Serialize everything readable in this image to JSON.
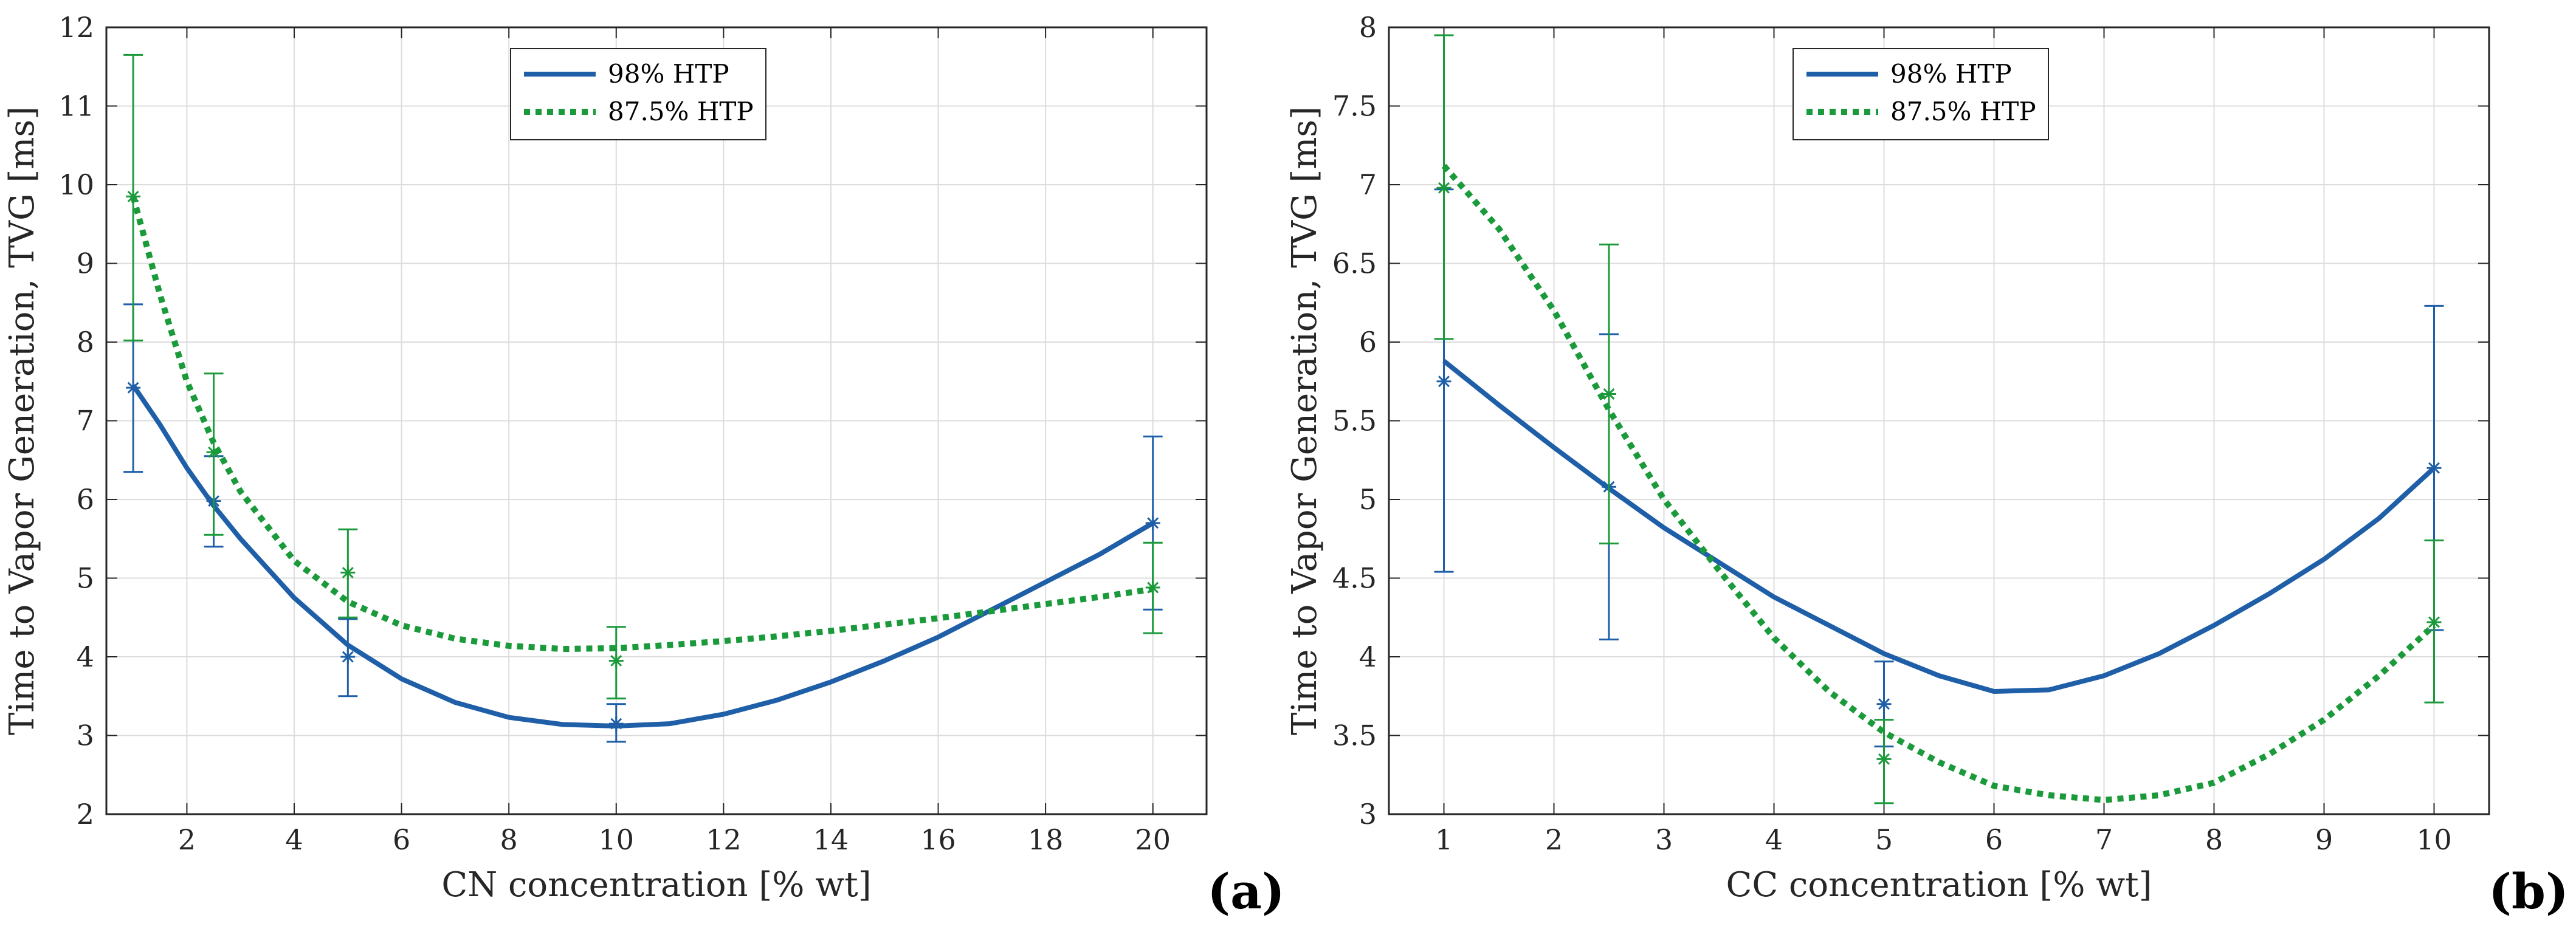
{
  "colors": {
    "htp98": "#1f5fa8",
    "htp875": "#1a9a3a",
    "axis": "#262626",
    "grid": "#dcdcdc"
  },
  "chart_data": [
    {
      "type": "line",
      "panel": "(a)",
      "xlabel": "CN concentration [% wt]",
      "ylabel": "Time to Vapor Generation, TVG [ms]",
      "xlim": [
        0.5,
        21
      ],
      "ylim": [
        2,
        12
      ],
      "xticks": [
        2,
        4,
        6,
        8,
        10,
        12,
        14,
        16,
        18,
        20
      ],
      "yticks": [
        2,
        3,
        4,
        5,
        6,
        7,
        8,
        9,
        10,
        11,
        12
      ],
      "grid": true,
      "legend": "top-center",
      "series": [
        {
          "name": "98% HTP",
          "style": "solid",
          "color": "#1f5fa8",
          "points": [
            {
              "x": 1,
              "y": 7.42,
              "lo": 6.35,
              "hi": 8.48
            },
            {
              "x": 2.5,
              "y": 5.98,
              "lo": 5.4,
              "hi": 6.55
            },
            {
              "x": 5,
              "y": 4.0,
              "lo": 3.5,
              "hi": 4.48
            },
            {
              "x": 10,
              "y": 3.15,
              "lo": 2.92,
              "hi": 3.4
            },
            {
              "x": 20,
              "y": 5.7,
              "lo": 4.6,
              "hi": 6.8
            }
          ],
          "fit_x": [
            1,
            1.5,
            2,
            2.5,
            3,
            4,
            5,
            6,
            7,
            8,
            9,
            10,
            11,
            12,
            13,
            14,
            15,
            16,
            17,
            18,
            19,
            20
          ],
          "fit_y": [
            7.45,
            6.95,
            6.4,
            5.92,
            5.5,
            4.75,
            4.15,
            3.72,
            3.42,
            3.23,
            3.14,
            3.12,
            3.15,
            3.27,
            3.45,
            3.68,
            3.95,
            4.25,
            4.6,
            4.95,
            5.3,
            5.7
          ]
        },
        {
          "name": "87.5% HTP",
          "style": "dotted",
          "color": "#1a9a3a",
          "points": [
            {
              "x": 1,
              "y": 9.85,
              "lo": 8.02,
              "hi": 11.65
            },
            {
              "x": 2.5,
              "y": 6.6,
              "lo": 5.55,
              "hi": 7.6
            },
            {
              "x": 5,
              "y": 5.07,
              "lo": 4.5,
              "hi": 5.62
            },
            {
              "x": 10,
              "y": 3.95,
              "lo": 3.47,
              "hi": 4.38
            },
            {
              "x": 20,
              "y": 4.88,
              "lo": 4.3,
              "hi": 5.45
            }
          ],
          "fit_x": [
            1,
            1.5,
            2,
            2.5,
            3,
            4,
            5,
            6,
            7,
            8,
            9,
            10,
            11,
            12,
            13,
            14,
            15,
            16,
            17,
            18,
            19,
            20
          ],
          "fit_y": [
            9.85,
            8.6,
            7.5,
            6.72,
            6.1,
            5.22,
            4.7,
            4.4,
            4.23,
            4.14,
            4.1,
            4.11,
            4.15,
            4.2,
            4.26,
            4.33,
            4.41,
            4.49,
            4.58,
            4.67,
            4.76,
            4.86
          ]
        }
      ]
    },
    {
      "type": "line",
      "panel": "(b)",
      "xlabel": "CC concentration [% wt]",
      "ylabel": "Time to Vapor Generation, TVG [ms]",
      "xlim": [
        0.5,
        10.5
      ],
      "ylim": [
        3,
        8
      ],
      "xticks": [
        1,
        2,
        3,
        4,
        5,
        6,
        7,
        8,
        9,
        10
      ],
      "yticks": [
        3,
        3.5,
        4,
        4.5,
        5,
        5.5,
        6,
        6.5,
        7,
        7.5,
        8
      ],
      "grid": true,
      "legend": "top-center",
      "series": [
        {
          "name": "98% HTP",
          "style": "solid",
          "color": "#1f5fa8",
          "points": [
            {
              "x": 1,
              "y": 5.75,
              "lo": 4.54,
              "hi": 6.97
            },
            {
              "x": 2.5,
              "y": 5.08,
              "lo": 4.11,
              "hi": 6.05
            },
            {
              "x": 5,
              "y": 3.7,
              "lo": 3.43,
              "hi": 3.97
            },
            {
              "x": 10,
              "y": 5.2,
              "lo": 4.17,
              "hi": 6.23
            }
          ],
          "fit_x": [
            1,
            1.5,
            2,
            2.5,
            3,
            3.5,
            4,
            4.5,
            5,
            5.5,
            6,
            6.5,
            7,
            7.5,
            8,
            8.5,
            9,
            9.5,
            10
          ],
          "fit_y": [
            5.88,
            5.6,
            5.33,
            5.07,
            4.82,
            4.6,
            4.38,
            4.2,
            4.02,
            3.88,
            3.78,
            3.79,
            3.88,
            4.02,
            4.2,
            4.4,
            4.62,
            4.88,
            5.2
          ]
        },
        {
          "name": "87.5% HTP",
          "style": "dotted",
          "color": "#1a9a3a",
          "points": [
            {
              "x": 1,
              "y": 6.98,
              "lo": 6.02,
              "hi": 7.95
            },
            {
              "x": 2.5,
              "y": 5.67,
              "lo": 4.72,
              "hi": 6.62
            },
            {
              "x": 5,
              "y": 3.35,
              "lo": 3.07,
              "hi": 3.6
            },
            {
              "x": 10,
              "y": 4.22,
              "lo": 3.71,
              "hi": 4.74
            }
          ],
          "fit_x": [
            1,
            1.5,
            2,
            2.5,
            3,
            3.5,
            4,
            4.5,
            5,
            5.5,
            6,
            6.5,
            7,
            7.5,
            8,
            8.5,
            9,
            9.5,
            10
          ],
          "fit_y": [
            7.12,
            6.72,
            6.2,
            5.57,
            5.0,
            4.55,
            4.12,
            3.78,
            3.52,
            3.33,
            3.18,
            3.12,
            3.09,
            3.12,
            3.2,
            3.38,
            3.6,
            3.88,
            4.2
          ]
        }
      ]
    }
  ]
}
